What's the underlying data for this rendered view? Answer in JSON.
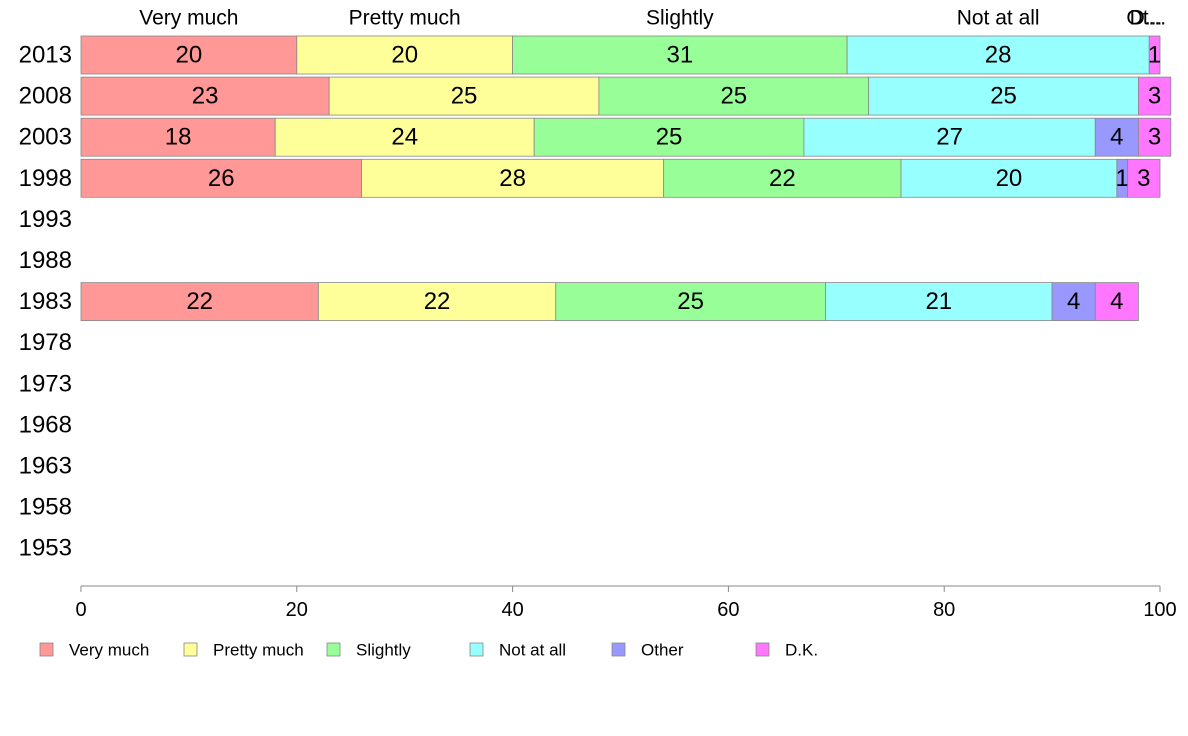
{
  "chart_data": {
    "type": "bar",
    "orientation": "horizontal",
    "stacked": true,
    "categories": [
      "2013",
      "2008",
      "2003",
      "1998",
      "1993",
      "1988",
      "1983",
      "1978",
      "1973",
      "1968",
      "1963",
      "1958",
      "1953"
    ],
    "series": [
      {
        "name": "Very much",
        "color": "#ff9896",
        "values": [
          20,
          23,
          18,
          26,
          null,
          null,
          22,
          null,
          null,
          null,
          null,
          null,
          null
        ]
      },
      {
        "name": "Pretty much",
        "color": "#ffff99",
        "values": [
          20,
          25,
          24,
          28,
          null,
          null,
          22,
          null,
          null,
          null,
          null,
          null,
          null
        ]
      },
      {
        "name": "Slightly",
        "color": "#98ff98",
        "values": [
          31,
          25,
          25,
          22,
          null,
          null,
          25,
          null,
          null,
          null,
          null,
          null,
          null
        ]
      },
      {
        "name": "Not at all",
        "color": "#98ffff",
        "values": [
          28,
          25,
          27,
          20,
          null,
          null,
          21,
          null,
          null,
          null,
          null,
          null,
          null
        ]
      },
      {
        "name": "Other",
        "color": "#9898ff",
        "values": [
          0,
          0,
          4,
          1,
          null,
          null,
          4,
          null,
          null,
          null,
          null,
          null,
          null
        ]
      },
      {
        "name": "D.K.",
        "color": "#ff76ff",
        "values": [
          1,
          3,
          3,
          3,
          null,
          null,
          4,
          null,
          null,
          null,
          null,
          null,
          null
        ]
      }
    ],
    "top_labels": [
      "Very much",
      "Pretty much",
      "Slightly",
      "Not at all",
      "Ot...",
      "D..."
    ],
    "xlim": [
      0,
      100
    ],
    "xticks": [
      0,
      20,
      40,
      60,
      80,
      100
    ],
    "grid": false,
    "legend_position": "bottom"
  }
}
